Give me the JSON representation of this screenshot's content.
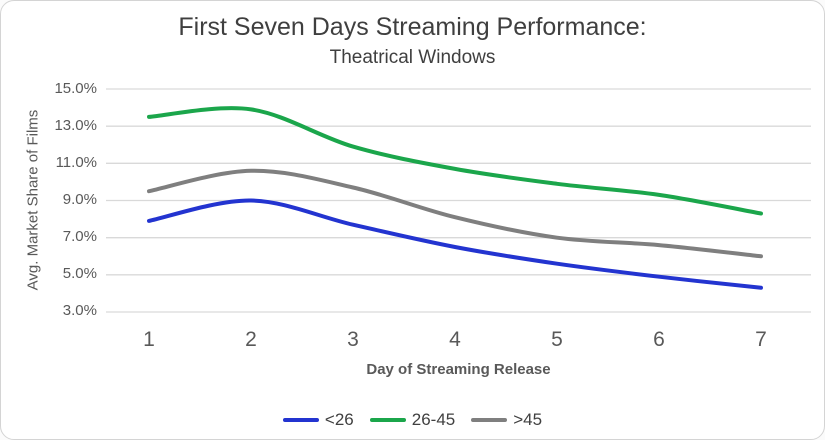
{
  "title": "First Seven Days Streaming Performance:",
  "subtitle": "Theatrical Windows",
  "colors": {
    "gridline": "#d9d9d9",
    "title_text": "#3f3f3f",
    "axis_text": "#595959",
    "card_border": "#d4d4d4",
    "series_blue": "#2334d0",
    "series_green": "#1ba64b",
    "series_gray": "#7f7f7f"
  },
  "chart_data": {
    "type": "line",
    "x": [
      1,
      2,
      3,
      4,
      5,
      6,
      7
    ],
    "xlabel": "Day of Streaming Release",
    "ylabel": "Avg. Market Share of Films",
    "ylim": [
      3,
      15
    ],
    "ytick_step": 2,
    "ytick_labels": [
      "15.0%",
      "13.0%",
      "11.0%",
      "9.0%",
      "7.0%",
      "5.0%",
      "3.0%"
    ],
    "grid": true,
    "legend_position": "bottom-center",
    "line_style": "smooth",
    "series": [
      {
        "name": "<26",
        "color": "#2334d0",
        "values": [
          7.9,
          9.0,
          7.7,
          6.5,
          5.6,
          4.9,
          4.3
        ]
      },
      {
        "name": "26-45",
        "color": "#1ba64b",
        "values": [
          13.5,
          13.9,
          11.9,
          10.7,
          9.9,
          9.3,
          8.3
        ]
      },
      {
        "name": ">45",
        "color": "#7f7f7f",
        "values": [
          9.5,
          10.6,
          9.7,
          8.1,
          7.0,
          6.6,
          6.0
        ]
      }
    ]
  }
}
